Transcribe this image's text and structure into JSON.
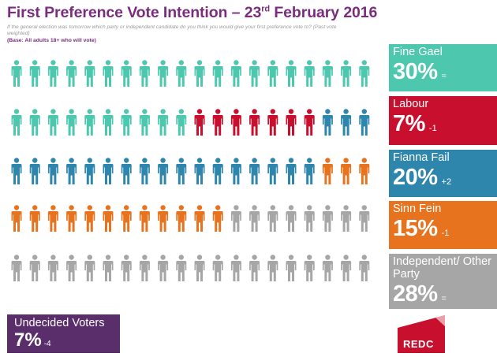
{
  "title": {
    "main": "First Preference Vote Intention – 23",
    "sup": "rd",
    "end": " February 2016"
  },
  "subtitle": "If the general election was tomorrow which party or independent candidate do you think you would give your first preference vote to? (Past vote weighted)",
  "base": "(Base: All adults 18+ who will vote)",
  "colors": {
    "fine_gael": "#4dc8ae",
    "labour": "#c8102e",
    "fianna_fail": "#2e86ad",
    "sinn_fein": "#e8731e",
    "other": "#a6a6a6",
    "undecided": "#5a2d6b",
    "title": "#7a2d7e"
  },
  "chart_data": {
    "type": "pictogram",
    "unit_icon": "person-icon",
    "rows": 5,
    "columns": 20,
    "series": [
      {
        "name": "Fine Gael",
        "value": 30,
        "icons": 30,
        "change": "=",
        "color": "#4dc8ae"
      },
      {
        "name": "Labour",
        "value": 7,
        "icons": 7,
        "change": "-1",
        "color": "#c8102e"
      },
      {
        "name": "Fianna Fail",
        "value": 20,
        "icons": 20,
        "change": "+2",
        "color": "#2e86ad"
      },
      {
        "name": "Sinn Fein",
        "value": 15,
        "icons": 15,
        "change": "-1",
        "color": "#e8731e"
      },
      {
        "name": "Independent/ Other Party",
        "value": 28,
        "icons": 28,
        "change": "=",
        "color": "#a6a6a6"
      }
    ],
    "unit": "%"
  },
  "parties": [
    {
      "name": "Fine Gael",
      "pct": "30%",
      "change": "="
    },
    {
      "name": "Labour",
      "pct": "7%",
      "change": "-1"
    },
    {
      "name": "Fianna Fail",
      "pct": "20%",
      "change": "+2"
    },
    {
      "name": "Sinn Fein",
      "pct": "15%",
      "change": "-1"
    },
    {
      "name": "Independent/ Other Party",
      "pct": "28%",
      "change": "="
    }
  ],
  "undecided": {
    "label": "Undecided Voters",
    "pct": "7%",
    "change": "-4"
  },
  "logo": "REDC"
}
